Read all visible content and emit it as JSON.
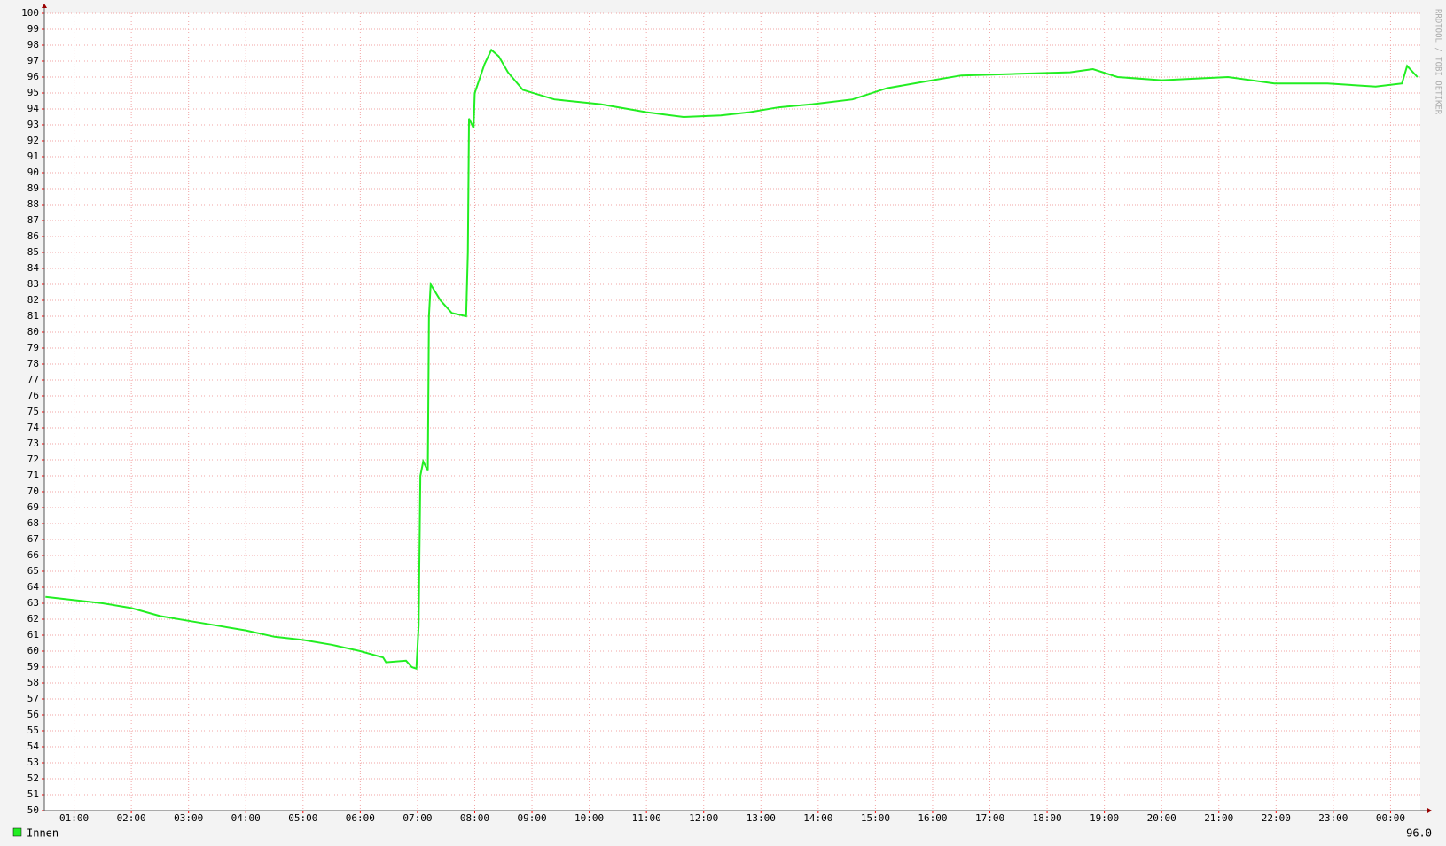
{
  "chart_data": {
    "type": "line",
    "watermark": "RRDTOOL / TOBI OETIKER",
    "annotation": "96.0",
    "xlim": [
      0.48,
      24.52
    ],
    "xticks": [
      {
        "value": 1,
        "label": "01:00"
      },
      {
        "value": 2,
        "label": "02:00"
      },
      {
        "value": 3,
        "label": "03:00"
      },
      {
        "value": 4,
        "label": "04:00"
      },
      {
        "value": 5,
        "label": "05:00"
      },
      {
        "value": 6,
        "label": "06:00"
      },
      {
        "value": 7,
        "label": "07:00"
      },
      {
        "value": 8,
        "label": "08:00"
      },
      {
        "value": 9,
        "label": "09:00"
      },
      {
        "value": 10,
        "label": "10:00"
      },
      {
        "value": 11,
        "label": "11:00"
      },
      {
        "value": 12,
        "label": "12:00"
      },
      {
        "value": 13,
        "label": "13:00"
      },
      {
        "value": 14,
        "label": "14:00"
      },
      {
        "value": 15,
        "label": "15:00"
      },
      {
        "value": 16,
        "label": "16:00"
      },
      {
        "value": 17,
        "label": "17:00"
      },
      {
        "value": 18,
        "label": "18:00"
      },
      {
        "value": 19,
        "label": "19:00"
      },
      {
        "value": 20,
        "label": "20:00"
      },
      {
        "value": 21,
        "label": "21:00"
      },
      {
        "value": 22,
        "label": "22:00"
      },
      {
        "value": 23,
        "label": "23:00"
      },
      {
        "value": 24,
        "label": "00:00"
      }
    ],
    "ylim": [
      50,
      100
    ],
    "yticks": [
      50,
      51,
      52,
      53,
      54,
      55,
      56,
      57,
      58,
      59,
      60,
      61,
      62,
      63,
      64,
      65,
      66,
      67,
      68,
      69,
      70,
      71,
      72,
      73,
      74,
      75,
      76,
      77,
      78,
      79,
      80,
      81,
      82,
      83,
      84,
      85,
      86,
      87,
      88,
      89,
      90,
      91,
      92,
      93,
      94,
      95,
      96,
      97,
      98,
      99,
      100
    ],
    "grid": true,
    "series": [
      {
        "name": "Innen",
        "color": "#22ee22",
        "x": [
          0.5,
          1.0,
          1.5,
          2.0,
          2.5,
          3.0,
          3.5,
          4.0,
          4.5,
          5.0,
          5.5,
          6.0,
          6.4,
          6.45,
          6.8,
          6.9,
          6.98,
          7.02,
          7.05,
          7.1,
          7.18,
          7.2,
          7.23,
          7.4,
          7.6,
          7.85,
          7.88,
          7.9,
          7.98,
          8.0,
          8.17,
          8.29,
          8.42,
          8.58,
          8.84,
          9.39,
          10.2,
          11.0,
          11.65,
          12.3,
          12.8,
          13.3,
          13.9,
          14.6,
          15.2,
          15.84,
          16.5,
          17.45,
          18.4,
          18.8,
          19.23,
          20.0,
          21.16,
          21.97,
          22.9,
          23.74,
          24.2,
          24.29,
          24.47
        ],
        "values": [
          63.4,
          63.2,
          63.0,
          62.7,
          62.2,
          61.9,
          61.6,
          61.3,
          60.9,
          60.7,
          60.4,
          60.0,
          59.6,
          59.3,
          59.4,
          59.0,
          58.9,
          61.6,
          71.0,
          71.9,
          71.3,
          81.0,
          83.0,
          82.0,
          81.2,
          81.0,
          85.0,
          93.4,
          92.8,
          95.0,
          96.8,
          97.7,
          97.3,
          96.3,
          95.2,
          94.6,
          94.3,
          93.8,
          93.5,
          93.6,
          93.8,
          94.1,
          94.3,
          94.6,
          95.3,
          95.7,
          96.1,
          96.2,
          96.3,
          96.5,
          96.0,
          95.8,
          96.0,
          95.6,
          95.6,
          95.4,
          95.6,
          96.7,
          96.0
        ]
      }
    ]
  }
}
